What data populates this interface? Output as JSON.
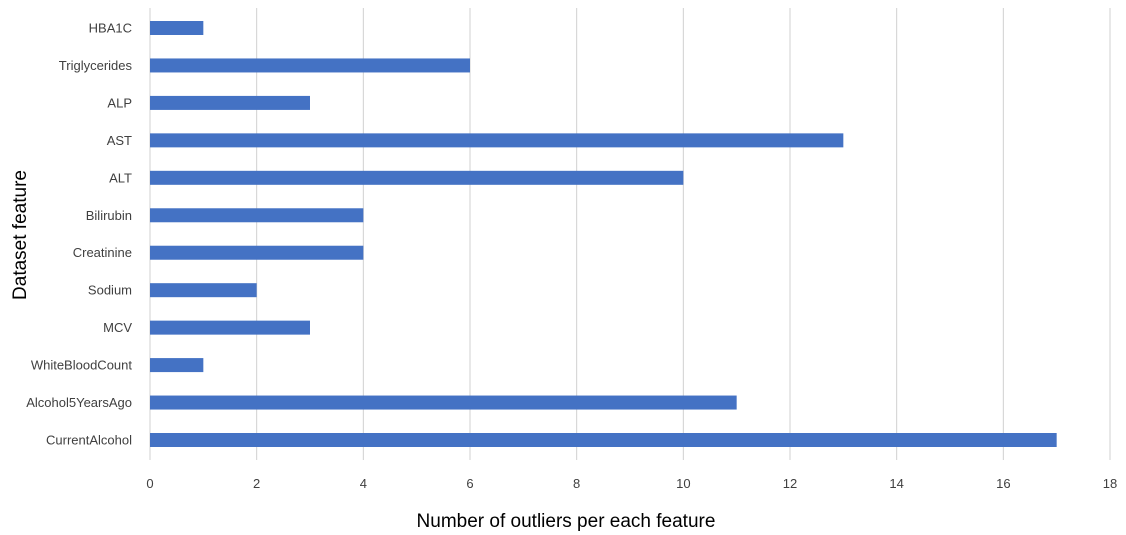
{
  "chart_data": {
    "type": "bar",
    "orientation": "horizontal",
    "categories": [
      "HBA1C",
      "Triglycerides",
      "ALP",
      "AST",
      "ALT",
      "Bilirubin",
      "Creatinine",
      "Sodium",
      "MCV",
      "WhiteBloodCount",
      "Alcohol5YearsAgo",
      "CurrentAlcohol"
    ],
    "values": [
      1,
      6,
      3,
      13,
      10,
      4,
      4,
      2,
      3,
      1,
      11,
      17
    ],
    "title": "",
    "xlabel": "Number of outliers per each feature",
    "ylabel": "Dataset feature",
    "xlim": [
      0,
      18
    ],
    "xticks": [
      "0",
      "2",
      "4",
      "6",
      "8",
      "10",
      "12",
      "14",
      "16",
      "18"
    ],
    "grid": true,
    "legend": "none",
    "bar_color": "#4472c4",
    "grid_color": "#d0d0d0"
  }
}
